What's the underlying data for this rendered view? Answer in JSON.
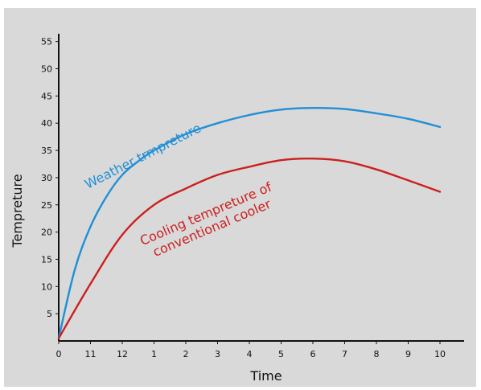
{
  "chart_data": {
    "type": "line",
    "xlabel": "Time",
    "ylabel": "Tempreture",
    "x_tick_labels": [
      "0",
      "11",
      "12",
      "1",
      "2",
      "3",
      "4",
      "5",
      "6",
      "7",
      "8",
      "9",
      "10"
    ],
    "y_ticks": [
      5,
      10,
      15,
      20,
      25,
      30,
      35,
      40,
      45,
      50,
      55
    ],
    "ylim": [
      0,
      55
    ],
    "grid": false,
    "series": [
      {
        "annotation": "Weather trmpreture",
        "color": "#1f8fd6",
        "x": [
          0,
          0.5,
          1,
          1.5,
          2,
          2.5,
          3,
          4,
          5,
          6,
          7,
          8,
          9,
          10,
          11,
          12
        ],
        "values": [
          0.5,
          13,
          21,
          26.5,
          30.5,
          33,
          35,
          38,
          40,
          41.5,
          42.5,
          42.8,
          42.6,
          41.8,
          40.8,
          39.3
        ]
      },
      {
        "annotation": "Cooling tempreture of\nconventional cooler",
        "color": "#cc1f1f",
        "x": [
          0,
          1,
          2,
          3,
          4,
          5,
          6,
          7,
          8,
          9,
          10,
          11,
          12
        ],
        "values": [
          0.5,
          10.5,
          19.5,
          25,
          28,
          30.5,
          32,
          33.2,
          33.5,
          33,
          31.5,
          29.5,
          27.4
        ]
      }
    ]
  }
}
